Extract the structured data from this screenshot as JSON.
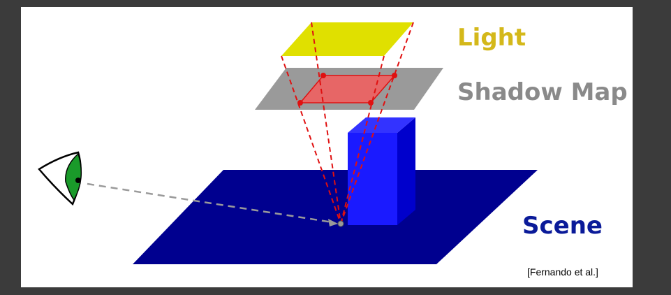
{
  "labels": {
    "light": "Light",
    "shadow_map": "Shadow Map",
    "scene": "Scene",
    "citation": "[Fernando et al.]"
  },
  "colors": {
    "light": "#d4b81a",
    "light_plane": "#e0e000",
    "shadow_map_text": "#8a8a8a",
    "shadow_map_plane": "#9a9a9a",
    "shadow_region": "#f06060",
    "scene_text": "#0a1a99",
    "scene_plane": "#00008f",
    "box": "#1a1aff",
    "projection_lines": "#e01010",
    "view_ray": "#9a9a9a",
    "eye_iris": "#1a9a2a"
  }
}
